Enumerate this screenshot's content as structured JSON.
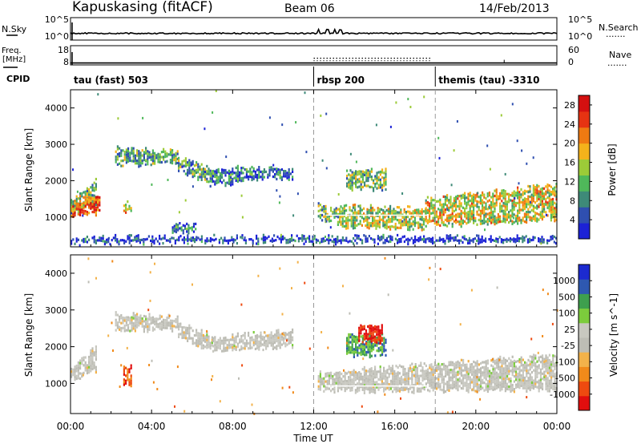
{
  "header": {
    "station": "Kapuskasing (fitACF)",
    "beam": "Beam 06",
    "date": "14/Feb/2013"
  },
  "side_labels": {
    "nsky": "N.Sky",
    "nsearch": "N.Search",
    "freq_line1": "Freq.",
    "freq_line2": "[MHz]",
    "nave": "Nave",
    "cpid": "CPID",
    "dotted_symbol": "·······",
    "solid_symbol": "—"
  },
  "colors": {
    "power_scale": [
      "#1c22d6",
      "#2f4fb0",
      "#3e8a78",
      "#4fb85a",
      "#9ccb38",
      "#f4b21b",
      "#ef7a12",
      "#e63312",
      "#d41010"
    ],
    "velocity_scale": [
      "#e10e0e",
      "#ee4a10",
      "#f18a1a",
      "#f3b24a",
      "#bdbdb5",
      "#c8c8c0",
      "#7ccc3c",
      "#3e9f4e",
      "#2e58b0",
      "#1c2ad0"
    ],
    "trace": "#000000",
    "dashed": "#9a9a9a"
  },
  "chart_data": [
    {
      "type": "line",
      "name": "noise-panel",
      "left_axis": {
        "label": "N.Sky",
        "ticks": [
          "10^5",
          "10^0"
        ]
      },
      "right_axis": {
        "label": "N.Search",
        "ticks": [
          "10^5",
          "10^0"
        ]
      },
      "series": [
        {
          "name": "N.Sky",
          "style": "solid",
          "level": 0.3
        },
        {
          "name": "N.Search",
          "style": "dotted",
          "level": 0.3
        }
      ]
    },
    {
      "type": "line",
      "name": "freq-panel",
      "left_axis": {
        "label": "Freq. [MHz]",
        "ticks": [
          "18",
          "8"
        ],
        "ylim": [
          8,
          18
        ]
      },
      "right_axis": {
        "label": "Nave",
        "ticks": [
          "60",
          "0"
        ],
        "ylim": [
          0,
          60
        ]
      },
      "series": [
        {
          "name": "Freq.",
          "style": "solid",
          "value_mhz": 9
        },
        {
          "name": "Nave",
          "style": "dotted",
          "x_hours": [
            12.0,
            17.8
          ],
          "value": 21
        }
      ]
    },
    {
      "type": "table",
      "name": "cpid-strip",
      "segments": [
        {
          "label": "tau (fast) 503",
          "start_hour": 0
        },
        {
          "label": "rbsp 200",
          "start_hour": 12
        },
        {
          "label": "themis (tau) -3310",
          "start_hour": 18
        }
      ]
    },
    {
      "type": "heatmap",
      "name": "power",
      "ylabel": "Slant Range [km]",
      "yticks": [
        1000,
        2000,
        3000,
        4000
      ],
      "ylim": [
        180,
        4500
      ],
      "xlim": [
        0,
        24
      ],
      "colorbar": {
        "label": "Power [dB]",
        "ticks": [
          4,
          8,
          12,
          16,
          20,
          24,
          28
        ],
        "range": [
          0,
          30
        ]
      },
      "bands": [
        {
          "x": [
            0.0,
            1.3
          ],
          "y0": [
            1100,
            1350
          ],
          "y1": [
            1450,
            2050
          ],
          "level": 0.45
        },
        {
          "x": [
            0.0,
            1.4
          ],
          "y0": [
            1050,
            1150
          ],
          "y1": [
            1350,
            1600
          ],
          "level": 0.8
        },
        {
          "x": [
            2.2,
            5.3
          ],
          "y0": [
            2450,
            2500
          ],
          "y1": [
            2900,
            2800
          ],
          "level": 0.35
        },
        {
          "x": [
            5.3,
            7.0
          ],
          "y0": [
            2300,
            1900
          ],
          "y1": [
            2650,
            2300
          ],
          "level": 0.35
        },
        {
          "x": [
            7.0,
            9.0
          ],
          "y0": [
            1900,
            2050
          ],
          "y1": [
            2250,
            2450
          ],
          "level": 0.25
        },
        {
          "x": [
            9.0,
            11.0
          ],
          "y0": [
            2050,
            2050
          ],
          "y1": [
            2350,
            2300
          ],
          "level": 0.2
        },
        {
          "x": [
            2.6,
            3.0
          ],
          "y0": [
            1150,
            1150
          ],
          "y1": [
            1400,
            1400
          ],
          "level": 0.6
        },
        {
          "x": [
            5.0,
            6.2
          ],
          "y0": [
            600,
            600
          ],
          "y1": [
            800,
            800
          ],
          "level": 0.2
        },
        {
          "x": [
            12.2,
            13.3
          ],
          "y0": [
            900,
            850
          ],
          "y1": [
            1400,
            1200
          ],
          "level": 0.4
        },
        {
          "x": [
            13.3,
            17.5
          ],
          "y0": [
            750,
            700
          ],
          "y1": [
            1300,
            1250
          ],
          "level": 0.5
        },
        {
          "x": [
            17.5,
            24.0
          ],
          "y0": [
            800,
            900
          ],
          "y1": [
            1500,
            1900
          ],
          "level": 0.55
        },
        {
          "x": [
            13.6,
            15.6
          ],
          "y0": [
            1800,
            1800
          ],
          "y1": [
            2300,
            2300
          ],
          "level": 0.4
        },
        {
          "x": [
            0.0,
            24.0
          ],
          "y0": [
            330,
            330
          ],
          "y1": [
            460,
            460
          ],
          "level": 0.1
        }
      ]
    },
    {
      "type": "heatmap",
      "name": "velocity",
      "xlabel": "Time UT",
      "ylabel": "Slant Range [km]",
      "yticks": [
        1000,
        2000,
        3000,
        4000
      ],
      "ylim": [
        180,
        4500
      ],
      "xlim": [
        0,
        24
      ],
      "xticks": [
        "00:00",
        "04:00",
        "08:00",
        "12:00",
        "16:00",
        "20:00",
        "00:00"
      ],
      "colorbar": {
        "label": "Velocity [m s^-1]",
        "ticks": [
          "1000",
          "500",
          "100",
          "25",
          "-25",
          "-100",
          "-500",
          "-1000"
        ]
      },
      "bands": [
        {
          "x": [
            0.0,
            1.3
          ],
          "y0": [
            1100,
            1350
          ],
          "y1": [
            1450,
            2050
          ],
          "level": 0.45
        },
        {
          "x": [
            2.2,
            5.3
          ],
          "y0": [
            2450,
            2500
          ],
          "y1": [
            2900,
            2800
          ],
          "level": 0.45
        },
        {
          "x": [
            5.3,
            7.0
          ],
          "y0": [
            2300,
            1900
          ],
          "y1": [
            2650,
            2300
          ],
          "level": 0.45
        },
        {
          "x": [
            7.0,
            11.0
          ],
          "y0": [
            1900,
            2050
          ],
          "y1": [
            2250,
            2450
          ],
          "level": 0.45
        },
        {
          "x": [
            12.2,
            24.0
          ],
          "y0": [
            800,
            850
          ],
          "y1": [
            1300,
            1800
          ],
          "level": 0.45
        },
        {
          "x": [
            2.6,
            3.0
          ],
          "y0": [
            1000,
            1000
          ],
          "y1": [
            1450,
            1450
          ],
          "level": 0.15
        },
        {
          "x": [
            13.6,
            15.6
          ],
          "y0": [
            1800,
            1800
          ],
          "y1": [
            2300,
            2300
          ],
          "level": 0.75
        },
        {
          "x": [
            14.2,
            15.4
          ],
          "y0": [
            2150,
            2150
          ],
          "y1": [
            2550,
            2550
          ],
          "level": 0.05
        }
      ]
    }
  ],
  "mode_change_hours": [
    12.0,
    18.0
  ]
}
